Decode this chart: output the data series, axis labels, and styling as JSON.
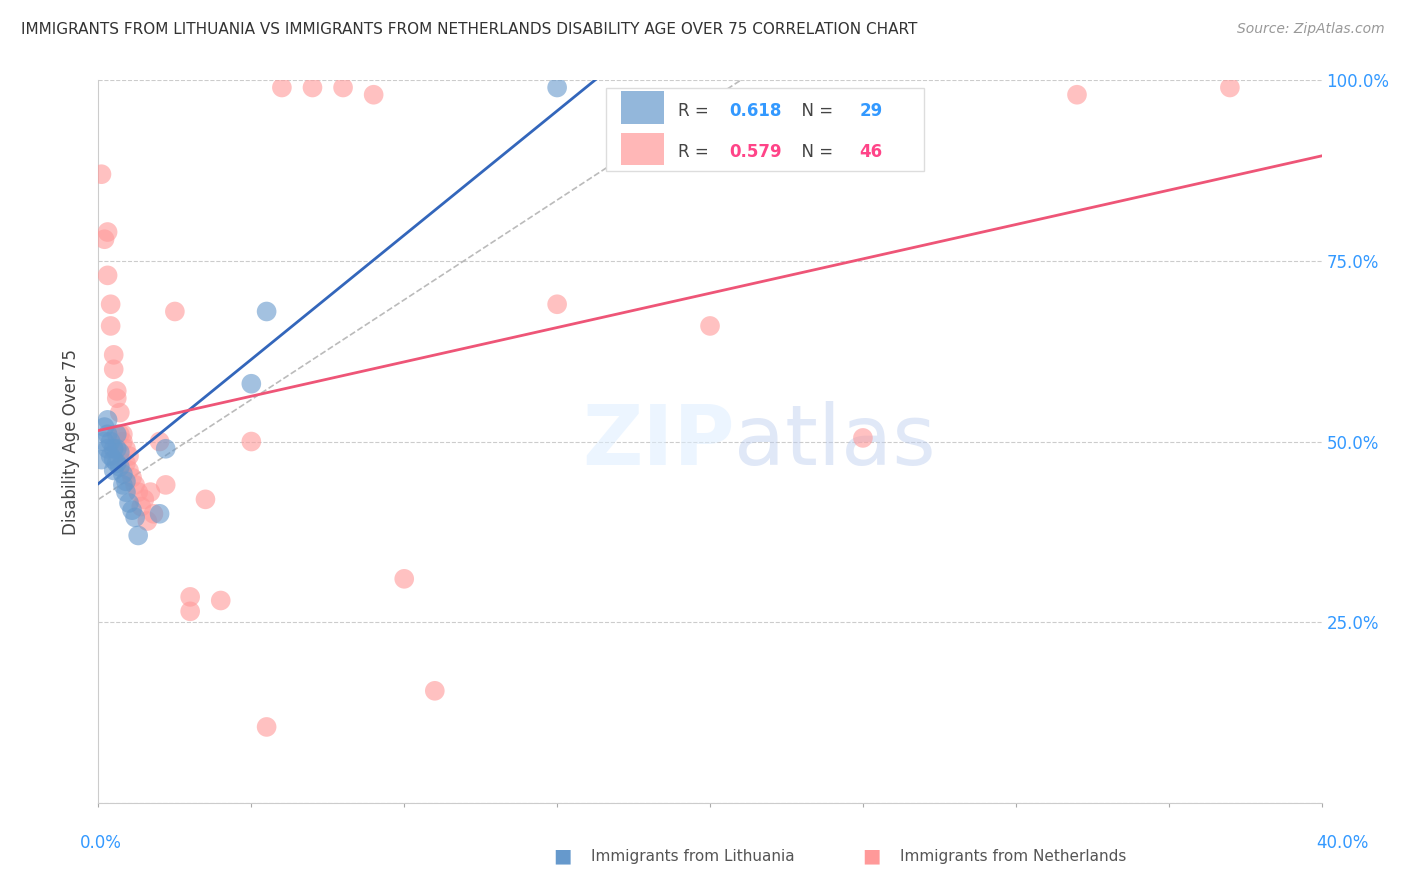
{
  "title": "IMMIGRANTS FROM LITHUANIA VS IMMIGRANTS FROM NETHERLANDS DISABILITY AGE OVER 75 CORRELATION CHART",
  "source": "Source: ZipAtlas.com",
  "ylabel": "Disability Age Over 75",
  "legend_blue_label": "Immigrants from Lithuania",
  "legend_pink_label": "Immigrants from Netherlands",
  "R_blue": 0.618,
  "N_blue": 29,
  "R_pink": 0.579,
  "N_pink": 46,
  "xlim": [
    0.0,
    0.4
  ],
  "ylim": [
    0.0,
    1.0
  ],
  "xticks": [
    0.0,
    0.05,
    0.1,
    0.15,
    0.2,
    0.25,
    0.3,
    0.35,
    0.4
  ],
  "yticks": [
    0.0,
    0.25,
    0.5,
    0.75,
    1.0
  ],
  "yticklabels_right": [
    "",
    "25.0%",
    "50.0%",
    "75.0%",
    "100.0%"
  ],
  "blue_color": "#6699CC",
  "pink_color": "#FF9999",
  "blue_line_color": "#3366BB",
  "pink_line_color": "#EE5577",
  "blue_x": [
    0.001,
    0.002,
    0.002,
    0.003,
    0.003,
    0.003,
    0.004,
    0.004,
    0.005,
    0.005,
    0.005,
    0.006,
    0.006,
    0.006,
    0.007,
    0.007,
    0.008,
    0.008,
    0.009,
    0.009,
    0.01,
    0.011,
    0.012,
    0.013,
    0.02,
    0.022,
    0.05,
    0.055,
    0.15
  ],
  "blue_y": [
    0.475,
    0.5,
    0.52,
    0.49,
    0.51,
    0.53,
    0.48,
    0.5,
    0.49,
    0.475,
    0.46,
    0.49,
    0.51,
    0.47,
    0.465,
    0.485,
    0.455,
    0.44,
    0.445,
    0.43,
    0.415,
    0.405,
    0.395,
    0.37,
    0.4,
    0.49,
    0.58,
    0.68,
    0.99
  ],
  "pink_x": [
    0.001,
    0.002,
    0.003,
    0.003,
    0.004,
    0.004,
    0.005,
    0.005,
    0.006,
    0.006,
    0.007,
    0.007,
    0.008,
    0.008,
    0.009,
    0.009,
    0.01,
    0.01,
    0.011,
    0.012,
    0.013,
    0.014,
    0.015,
    0.016,
    0.017,
    0.018,
    0.02,
    0.022,
    0.025,
    0.03,
    0.03,
    0.035,
    0.04,
    0.05,
    0.055,
    0.06,
    0.07,
    0.08,
    0.09,
    0.1,
    0.11,
    0.15,
    0.2,
    0.25,
    0.32,
    0.37
  ],
  "pink_y": [
    0.87,
    0.78,
    0.73,
    0.79,
    0.69,
    0.66,
    0.62,
    0.6,
    0.56,
    0.57,
    0.54,
    0.51,
    0.51,
    0.5,
    0.47,
    0.49,
    0.48,
    0.46,
    0.45,
    0.44,
    0.43,
    0.41,
    0.42,
    0.39,
    0.43,
    0.4,
    0.5,
    0.44,
    0.68,
    0.285,
    0.265,
    0.42,
    0.28,
    0.5,
    0.105,
    0.99,
    0.99,
    0.99,
    0.98,
    0.31,
    0.155,
    0.69,
    0.66,
    0.505,
    0.98,
    0.99
  ],
  "dash_line_x": [
    0.0,
    0.21
  ],
  "dash_line_y": [
    0.42,
    1.0
  ]
}
